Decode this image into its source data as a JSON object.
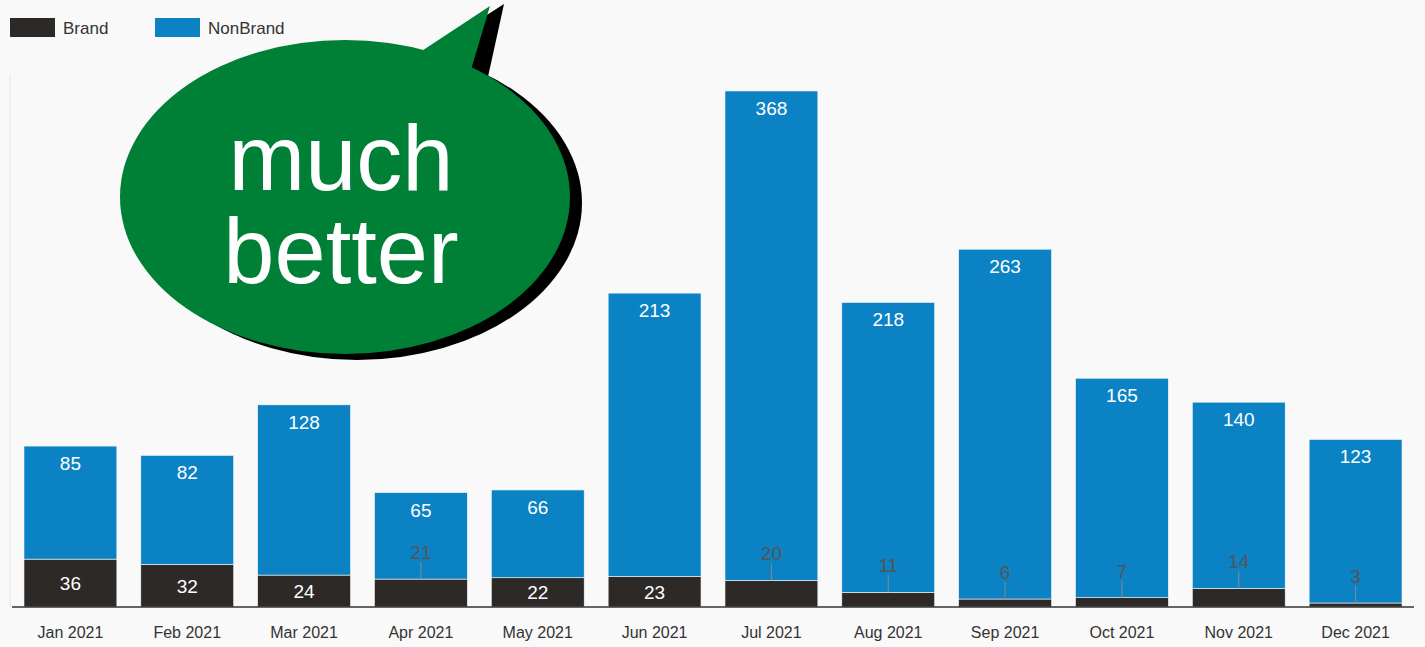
{
  "chart_data": {
    "type": "bar",
    "stacked": true,
    "data_labels": true,
    "tick_labels": "x",
    "grid": false,
    "legend": "top-left",
    "annotation": "much better",
    "categories": [
      "Jan 2021",
      "Feb 2021",
      "Mar 2021",
      "Apr 2021",
      "May 2021",
      "Jun 2021",
      "Jul 2021",
      "Aug 2021",
      "Sep 2021",
      "Oct 2021",
      "Nov 2021",
      "Dec 2021"
    ],
    "series": [
      {
        "name": "Brand",
        "color": "#2d2926",
        "values": [
          36,
          32,
          24,
          21,
          22,
          23,
          20,
          11,
          6,
          7,
          14,
          3
        ]
      },
      {
        "name": "NonBrand",
        "color": "#0b82c4",
        "values": [
          85,
          82,
          128,
          65,
          66,
          213,
          368,
          218,
          263,
          165,
          140,
          123
        ]
      }
    ],
    "ylim": [
      0,
      400
    ]
  }
}
